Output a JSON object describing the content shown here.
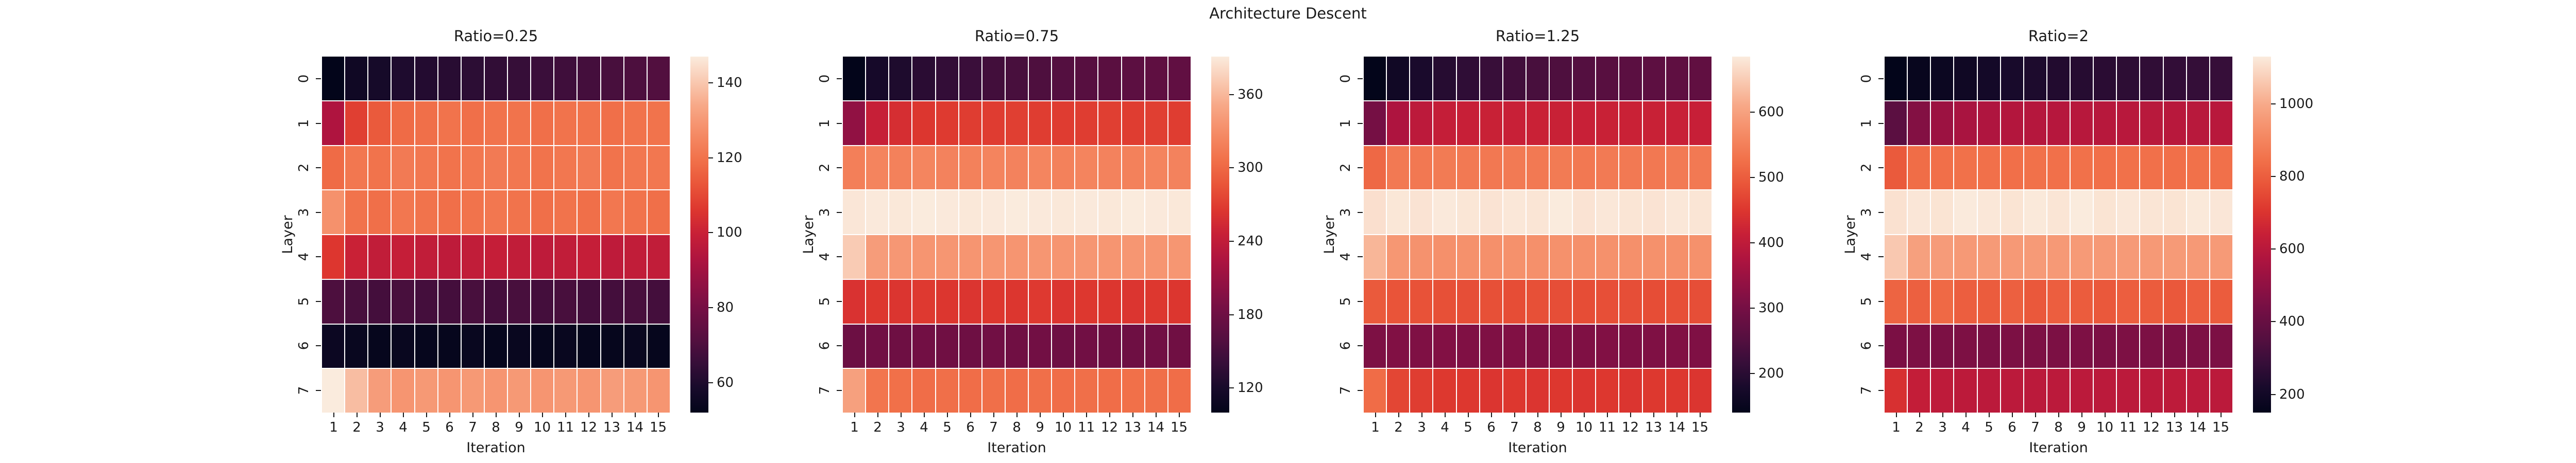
{
  "figure": {
    "title": "Architecture Descent",
    "background": "#ffffff",
    "text_color": "#1a1a1a"
  },
  "axes": {
    "xlabel": "Iteration",
    "ylabel": "Layer",
    "x_tick_labels": [
      "1",
      "2",
      "3",
      "4",
      "5",
      "6",
      "7",
      "8",
      "9",
      "10",
      "11",
      "12",
      "13",
      "14",
      "15"
    ],
    "y_tick_labels": [
      "0",
      "1",
      "2",
      "3",
      "4",
      "5",
      "6",
      "7"
    ]
  },
  "colors": {
    "colormap": "rocket",
    "gridline": "#ffffff",
    "stops": [
      [
        0.0,
        "#03051A"
      ],
      [
        0.07,
        "#180A2B"
      ],
      [
        0.14,
        "#370E39"
      ],
      [
        0.21,
        "#560F40"
      ],
      [
        0.29,
        "#740F44"
      ],
      [
        0.36,
        "#911143"
      ],
      [
        0.43,
        "#AE143F"
      ],
      [
        0.5,
        "#C71F37"
      ],
      [
        0.57,
        "#DD372F"
      ],
      [
        0.64,
        "#E95539"
      ],
      [
        0.71,
        "#F1714A"
      ],
      [
        0.79,
        "#F58D68"
      ],
      [
        0.86,
        "#F7A786"
      ],
      [
        0.93,
        "#F9C9B1"
      ],
      [
        1.0,
        "#FAEBDD"
      ]
    ]
  },
  "chart_data": [
    {
      "type": "heatmap",
      "title": "Ratio=0.25",
      "xlabel": "Iteration",
      "ylabel": "Layer",
      "x": [
        1,
        2,
        3,
        4,
        5,
        6,
        7,
        8,
        9,
        10,
        11,
        12,
        13,
        14,
        15
      ],
      "y": [
        0,
        1,
        2,
        3,
        4,
        5,
        6,
        7
      ],
      "vmin": 52,
      "vmax": 147,
      "colorbar_ticks": [
        60,
        80,
        100,
        120,
        140
      ],
      "values": [
        [
          52,
          56,
          58,
          60,
          61,
          62,
          63,
          64,
          65,
          66,
          67,
          68,
          69,
          70,
          71
        ],
        [
          93,
          108,
          114,
          118,
          119,
          120,
          119,
          120,
          120,
          119,
          120,
          120,
          119,
          120,
          120
        ],
        [
          118,
          121,
          120,
          122,
          121,
          120,
          121,
          122,
          121,
          120,
          121,
          122,
          120,
          121,
          121
        ],
        [
          128,
          120,
          119,
          121,
          120,
          119,
          120,
          121,
          120,
          119,
          120,
          119,
          121,
          120,
          119
        ],
        [
          106,
          100,
          98,
          99,
          98,
          97,
          98,
          99,
          98,
          97,
          98,
          99,
          97,
          98,
          98
        ],
        [
          70,
          69,
          68,
          69,
          68,
          68,
          69,
          68,
          69,
          68,
          69,
          68,
          68,
          69,
          68
        ],
        [
          55,
          54,
          53,
          54,
          53,
          53,
          54,
          53,
          54,
          53,
          54,
          53,
          53,
          54,
          53
        ],
        [
          147,
          138,
          131,
          129,
          130,
          129,
          130,
          129,
          130,
          129,
          130,
          129,
          131,
          130,
          129
        ]
      ]
    },
    {
      "type": "heatmap",
      "title": "Ratio=0.75",
      "xlabel": "Iteration",
      "ylabel": "Layer",
      "x": [
        1,
        2,
        3,
        4,
        5,
        6,
        7,
        8,
        9,
        10,
        11,
        12,
        13,
        14,
        15
      ],
      "y": [
        0,
        1,
        2,
        3,
        4,
        5,
        6,
        7
      ],
      "vmin": 100,
      "vmax": 391,
      "colorbar_ticks": [
        120,
        180,
        240,
        300,
        360
      ],
      "values": [
        [
          100,
          118,
          124,
          132,
          138,
          143,
          148,
          152,
          156,
          160,
          162,
          164,
          166,
          168,
          170
        ],
        [
          205,
          245,
          258,
          265,
          268,
          270,
          269,
          271,
          270,
          269,
          270,
          271,
          270,
          271,
          270
        ],
        [
          318,
          322,
          320,
          323,
          321,
          320,
          322,
          321,
          323,
          320,
          322,
          321,
          320,
          322,
          321
        ],
        [
          388,
          390,
          389,
          391,
          390,
          389,
          390,
          391,
          390,
          389,
          390,
          389,
          391,
          390,
          389
        ],
        [
          372,
          342,
          338,
          336,
          337,
          336,
          337,
          336,
          337,
          336,
          337,
          336,
          337,
          336,
          337
        ],
        [
          262,
          266,
          264,
          267,
          265,
          264,
          266,
          265,
          267,
          264,
          266,
          265,
          264,
          266,
          265
        ],
        [
          178,
          182,
          180,
          183,
          181,
          180,
          182,
          181,
          183,
          180,
          182,
          181,
          180,
          182,
          181
        ],
        [
          345,
          310,
          306,
          304,
          305,
          304,
          305,
          304,
          305,
          304,
          305,
          304,
          306,
          305,
          304
        ]
      ]
    },
    {
      "type": "heatmap",
      "title": "Ratio=1.25",
      "xlabel": "Iteration",
      "ylabel": "Layer",
      "x": [
        1,
        2,
        3,
        4,
        5,
        6,
        7,
        8,
        9,
        10,
        11,
        12,
        13,
        14,
        15
      ],
      "y": [
        0,
        1,
        2,
        3,
        4,
        5,
        6,
        7
      ],
      "vmin": 140,
      "vmax": 685,
      "colorbar_ticks": [
        200,
        300,
        400,
        500,
        600
      ],
      "values": [
        [
          140,
          165,
          180,
          195,
          207,
          218,
          228,
          237,
          245,
          252,
          257,
          261,
          264,
          267,
          270
        ],
        [
          300,
          375,
          395,
          408,
          412,
          415,
          414,
          416,
          415,
          414,
          415,
          416,
          415,
          414,
          412
        ],
        [
          515,
          540,
          538,
          542,
          540,
          538,
          541,
          540,
          542,
          538,
          541,
          540,
          538,
          541,
          540
        ],
        [
          672,
          680,
          676,
          683,
          679,
          676,
          681,
          678,
          685,
          676,
          681,
          678,
          676,
          681,
          678
        ],
        [
          625,
          585,
          578,
          575,
          576,
          575,
          576,
          575,
          576,
          575,
          576,
          575,
          576,
          575,
          576
        ],
        [
          495,
          488,
          485,
          482,
          480,
          483,
          478,
          482,
          480,
          478,
          481,
          480,
          478,
          481,
          480
        ],
        [
          310,
          315,
          312,
          316,
          314,
          312,
          315,
          313,
          316,
          312,
          315,
          313,
          312,
          315,
          313
        ],
        [
          520,
          470,
          458,
          452,
          450,
          448,
          450,
          448,
          450,
          448,
          450,
          448,
          452,
          450,
          448
        ]
      ]
    },
    {
      "type": "heatmap",
      "title": "Ratio=2",
      "xlabel": "Iteration",
      "ylabel": "Layer",
      "x": [
        1,
        2,
        3,
        4,
        5,
        6,
        7,
        8,
        9,
        10,
        11,
        12,
        13,
        14,
        15
      ],
      "y": [
        0,
        1,
        2,
        3,
        4,
        5,
        6,
        7
      ],
      "vmin": 150,
      "vmax": 1130,
      "colorbar_ticks": [
        200,
        400,
        600,
        800,
        1000
      ],
      "values": [
        [
          150,
          165,
          178,
          192,
          205,
          218,
          230,
          240,
          250,
          258,
          265,
          271,
          276,
          281,
          286
        ],
        [
          370,
          470,
          530,
          560,
          575,
          585,
          590,
          592,
          595,
          597,
          598,
          600,
          598,
          600,
          598
        ],
        [
          790,
          835,
          842,
          846,
          844,
          842,
          845,
          844,
          846,
          842,
          845,
          844,
          842,
          845,
          844
        ],
        [
          1110,
          1120,
          1115,
          1128,
          1122,
          1115,
          1125,
          1118,
          1130,
          1115,
          1122,
          1118,
          1115,
          1125,
          1120
        ],
        [
          1060,
          975,
          962,
          956,
          958,
          956,
          958,
          956,
          958,
          956,
          958,
          956,
          958,
          956,
          958
        ],
        [
          815,
          805,
          825,
          800,
          795,
          805,
          785,
          800,
          795,
          785,
          800,
          795,
          785,
          800,
          795
        ],
        [
          450,
          455,
          452,
          456,
          454,
          452,
          455,
          453,
          456,
          452,
          455,
          453,
          452,
          455,
          453
        ],
        [
          690,
          630,
          616,
          610,
          608,
          606,
          608,
          606,
          608,
          606,
          608,
          606,
          612,
          608,
          606
        ]
      ]
    }
  ]
}
